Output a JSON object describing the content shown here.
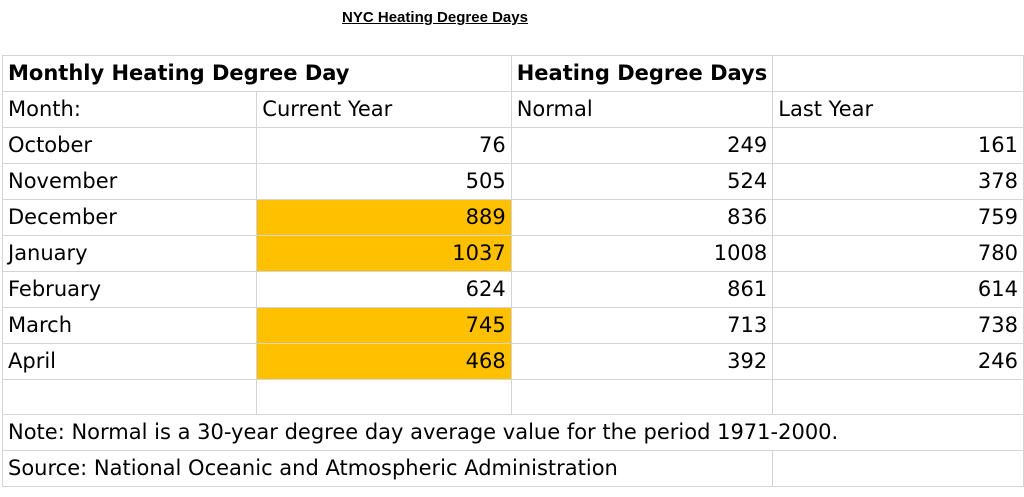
{
  "title": "NYC Heating Degree Days",
  "header_row": {
    "left": "Monthly Heating Degree Day",
    "right": "Heating Degree Days"
  },
  "columns": {
    "month": "Month:",
    "current": "Current Year",
    "normal": "Normal",
    "last": "Last Year"
  },
  "rows": [
    {
      "month": "October",
      "current": "76",
      "normal": "249",
      "last": "161",
      "highlight": false
    },
    {
      "month": "November",
      "current": "505",
      "normal": "524",
      "last": "378",
      "highlight": false
    },
    {
      "month": "December",
      "current": "889",
      "normal": "836",
      "last": "759",
      "highlight": true
    },
    {
      "month": "January",
      "current": "1037",
      "normal": "1008",
      "last": "780",
      "highlight": true
    },
    {
      "month": "February",
      "current": "624",
      "normal": "861",
      "last": "614",
      "highlight": false
    },
    {
      "month": "March",
      "current": "745",
      "normal": "713",
      "last": "738",
      "highlight": true
    },
    {
      "month": "April",
      "current": "468",
      "normal": "392",
      "last": "246",
      "highlight": true
    }
  ],
  "note": "Note: Normal is a 30-year degree day average value for the period 1971-2000.",
  "source": "Source: National Oceanic and Atmospheric Administration",
  "highlight_color": "#ffc000"
}
